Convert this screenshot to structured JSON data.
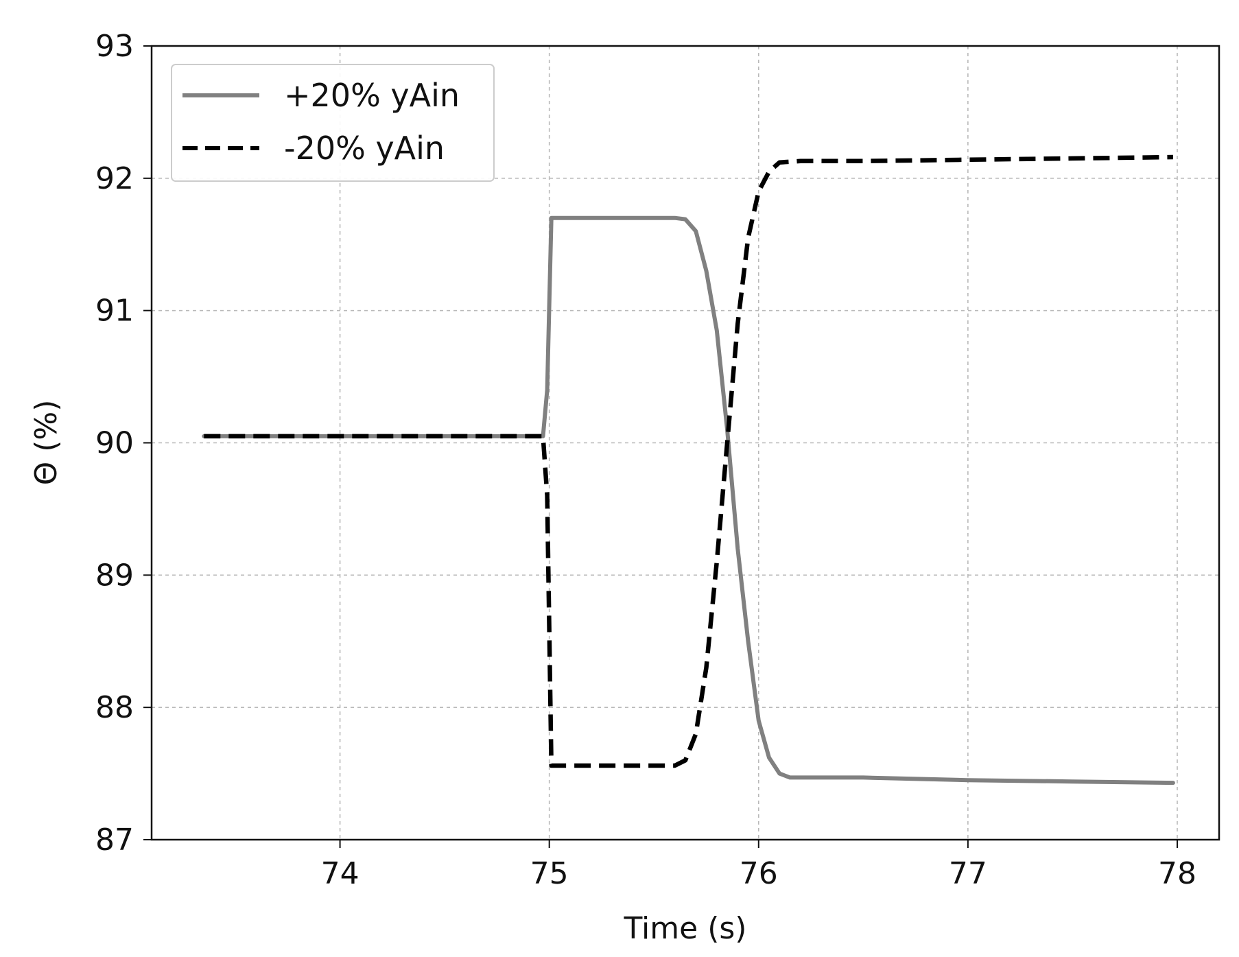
{
  "chart_data": {
    "type": "line",
    "title": "",
    "xlabel": "Time (s)",
    "ylabel": "Θ (%)",
    "xlim": [
      73.1,
      78.2
    ],
    "ylim": [
      87,
      93
    ],
    "xticks": [
      74,
      75,
      76,
      77,
      78
    ],
    "yticks": [
      87,
      88,
      89,
      90,
      91,
      92,
      93
    ],
    "xtick_labels": [
      "74",
      "75",
      "76",
      "77",
      "78"
    ],
    "ytick_labels": [
      "87",
      "88",
      "89",
      "90",
      "91",
      "92",
      "93"
    ],
    "grid": true,
    "legend_position": "top-left",
    "series": [
      {
        "name": "+20% yAin",
        "color": "#808080",
        "style": "solid",
        "x": [
          73.35,
          74.0,
          74.5,
          74.97,
          74.99,
          75.01,
          75.1,
          75.4,
          75.6,
          75.65,
          75.7,
          75.75,
          75.8,
          75.85,
          75.9,
          75.95,
          76.0,
          76.05,
          76.1,
          76.15,
          76.2,
          76.5,
          77.0,
          77.5,
          77.98
        ],
        "y": [
          90.05,
          90.05,
          90.05,
          90.05,
          90.4,
          91.7,
          91.7,
          91.7,
          91.7,
          91.69,
          91.6,
          91.3,
          90.85,
          90.1,
          89.2,
          88.5,
          87.9,
          87.62,
          87.5,
          87.47,
          87.47,
          87.47,
          87.45,
          87.44,
          87.43
        ]
      },
      {
        "name": "-20% yAin",
        "color": "#000000",
        "style": "dashed",
        "x": [
          73.35,
          74.0,
          74.5,
          74.97,
          74.99,
          75.01,
          75.1,
          75.4,
          75.6,
          75.65,
          75.7,
          75.75,
          75.8,
          75.85,
          75.9,
          75.95,
          76.0,
          76.05,
          76.1,
          76.2,
          76.5,
          77.0,
          77.5,
          77.98
        ],
        "y": [
          90.05,
          90.05,
          90.05,
          90.05,
          89.6,
          87.56,
          87.56,
          87.56,
          87.56,
          87.6,
          87.8,
          88.3,
          89.1,
          90.0,
          90.9,
          91.55,
          91.9,
          92.05,
          92.12,
          92.13,
          92.13,
          92.14,
          92.15,
          92.16
        ]
      }
    ]
  }
}
